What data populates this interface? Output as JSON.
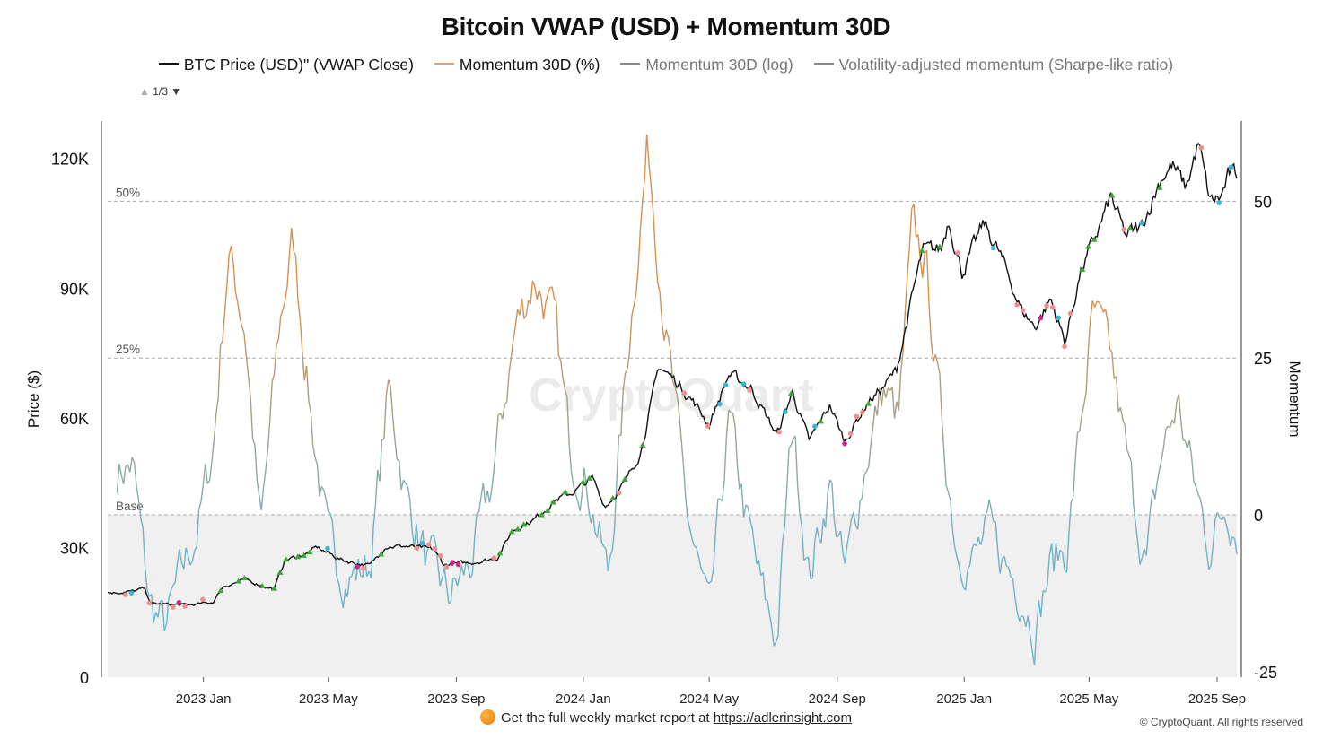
{
  "footer": {
    "text": "Get the full weekly market report at",
    "link": "https://adlerinsight.com",
    "icon": "orange-circle-icon"
  },
  "copyright": "© CryptoQuant. All rights reserved",
  "pager": {
    "label": "1/3"
  },
  "colors": {
    "price": "#111111",
    "momentum_high": "#d4904f",
    "momentum_low": "#6fb3c6",
    "baseline_fill": "#f0f0f0",
    "marker_green": "#3aa832",
    "marker_cyan": "#3db4d6",
    "marker_pink": "#ee8f8f",
    "marker_magenta": "#d0288a",
    "marker_purple": "#7a3fc8",
    "marker_red": "#c0392b"
  },
  "chart_data": {
    "type": "line",
    "title": "Bitcoin VWAP (USD) + Momentum 30D",
    "watermark": "CryptoQuant",
    "legend": [
      {
        "label": "BTC Price (USD)\" (VWAP Close)",
        "color": "#111111",
        "enabled": true
      },
      {
        "label": "Momentum 30D (%)",
        "color": "#e0a070",
        "enabled": true
      },
      {
        "label": "Momentum 30D (log)",
        "color": "#888888",
        "enabled": false
      },
      {
        "label": "Volatility-adjusted momentum (Sharpe-like ratio)",
        "color": "#888888",
        "enabled": false
      }
    ],
    "legend_position": "top-center",
    "y_left": {
      "label": "Price ($)",
      "range": [
        0,
        125000
      ],
      "ticks": [
        0,
        30000,
        60000,
        90000,
        120000
      ],
      "tick_labels": [
        "0",
        "30K",
        "60K",
        "90K",
        "120K"
      ]
    },
    "y_right": {
      "label": "Momentum",
      "range": [
        -25,
        64
      ],
      "ticks": [
        -25,
        0,
        25,
        50
      ],
      "tick_labels": [
        "-25",
        "0",
        "25",
        "50"
      ]
    },
    "x": {
      "range": [
        "2022-10-01",
        "2025-09-20"
      ],
      "ticks": [
        "2023-01-01",
        "2023-05-01",
        "2023-09-01",
        "2024-01-01",
        "2024-05-01",
        "2024-09-01",
        "2025-01-01",
        "2025-05-01",
        "2025-09-01"
      ],
      "tick_labels": [
        "2023 Jan",
        "2023 May",
        "2023 Sep",
        "2024 Jan",
        "2024 May",
        "2024 Sep",
        "2025 Jan",
        "2025 May",
        "2025 Sep"
      ]
    },
    "reference_lines": [
      {
        "label": "50%",
        "value": 50,
        "axis": "right"
      },
      {
        "label": "25%",
        "value": 25,
        "axis": "right"
      },
      {
        "label": "Base",
        "value": 0,
        "axis": "right"
      }
    ],
    "grid": false,
    "series": [
      {
        "name": "BTC Price (USD)\" (VWAP Close)",
        "axis": "left",
        "points": [
          [
            "2022-10-01",
            19500
          ],
          [
            "2022-10-25",
            19800
          ],
          [
            "2022-11-05",
            20500
          ],
          [
            "2022-11-12",
            17000
          ],
          [
            "2022-12-01",
            16800
          ],
          [
            "2022-12-20",
            16700
          ],
          [
            "2023-01-10",
            17300
          ],
          [
            "2023-01-20",
            21000
          ],
          [
            "2023-02-10",
            22500
          ],
          [
            "2023-03-10",
            20300
          ],
          [
            "2023-03-20",
            27000
          ],
          [
            "2023-04-10",
            28500
          ],
          [
            "2023-04-20",
            30000
          ],
          [
            "2023-05-15",
            27000
          ],
          [
            "2023-06-10",
            25800
          ],
          [
            "2023-06-25",
            30300
          ],
          [
            "2023-07-15",
            30300
          ],
          [
            "2023-08-10",
            29500
          ],
          [
            "2023-08-20",
            26000
          ],
          [
            "2023-09-15",
            26500
          ],
          [
            "2023-10-10",
            27500
          ],
          [
            "2023-10-25",
            34000
          ],
          [
            "2023-11-15",
            36500
          ],
          [
            "2023-12-05",
            41000
          ],
          [
            "2023-12-20",
            42500
          ],
          [
            "2024-01-10",
            46000
          ],
          [
            "2024-01-22",
            39500
          ],
          [
            "2024-02-10",
            45000
          ],
          [
            "2024-02-25",
            52000
          ],
          [
            "2024-03-05",
            62000
          ],
          [
            "2024-03-14",
            72000
          ],
          [
            "2024-04-01",
            68000
          ],
          [
            "2024-04-15",
            64000
          ],
          [
            "2024-05-01",
            58500
          ],
          [
            "2024-05-20",
            70000
          ],
          [
            "2024-06-10",
            67000
          ],
          [
            "2024-07-05",
            56000
          ],
          [
            "2024-07-20",
            66000
          ],
          [
            "2024-08-05",
            54500
          ],
          [
            "2024-08-25",
            63000
          ],
          [
            "2024-09-08",
            54500
          ],
          [
            "2024-09-30",
            63500
          ],
          [
            "2024-10-15",
            67000
          ],
          [
            "2024-10-28",
            71000
          ],
          [
            "2024-11-12",
            88000
          ],
          [
            "2024-11-22",
            98500
          ],
          [
            "2024-12-10",
            99000
          ],
          [
            "2024-12-17",
            106000
          ],
          [
            "2024-12-30",
            93500
          ],
          [
            "2025-01-20",
            105000
          ],
          [
            "2025-02-05",
            97500
          ],
          [
            "2025-02-25",
            85000
          ],
          [
            "2025-03-10",
            81000
          ],
          [
            "2025-03-25",
            87500
          ],
          [
            "2025-04-08",
            77500
          ],
          [
            "2025-04-22",
            93000
          ],
          [
            "2025-05-10",
            103500
          ],
          [
            "2025-05-22",
            111000
          ],
          [
            "2025-06-05",
            102000
          ],
          [
            "2025-06-20",
            104000
          ],
          [
            "2025-07-10",
            116000
          ],
          [
            "2025-07-20",
            118500
          ],
          [
            "2025-08-02",
            113000
          ],
          [
            "2025-08-14",
            123500
          ],
          [
            "2025-08-25",
            110000
          ],
          [
            "2025-09-05",
            111000
          ],
          [
            "2025-09-12",
            116000
          ],
          [
            "2025-09-20",
            116000
          ]
        ]
      },
      {
        "name": "Momentum 30D (%)",
        "axis": "right",
        "points": [
          [
            "2022-10-10",
            7
          ],
          [
            "2022-10-25",
            8
          ],
          [
            "2022-11-10",
            -14
          ],
          [
            "2022-11-25",
            -18
          ],
          [
            "2022-12-10",
            -10
          ],
          [
            "2022-12-25",
            -3
          ],
          [
            "2023-01-10",
            10
          ],
          [
            "2023-01-25",
            42
          ],
          [
            "2023-02-10",
            30
          ],
          [
            "2023-02-25",
            -3
          ],
          [
            "2023-03-15",
            30
          ],
          [
            "2023-03-28",
            44
          ],
          [
            "2023-04-15",
            15
          ],
          [
            "2023-05-01",
            -5
          ],
          [
            "2023-05-20",
            -10
          ],
          [
            "2023-06-10",
            -8
          ],
          [
            "2023-06-28",
            20
          ],
          [
            "2023-07-15",
            3
          ],
          [
            "2023-08-05",
            -8
          ],
          [
            "2023-08-25",
            -13
          ],
          [
            "2023-09-15",
            -8
          ],
          [
            "2023-10-05",
            5
          ],
          [
            "2023-10-28",
            30
          ],
          [
            "2023-11-15",
            38
          ],
          [
            "2023-12-05",
            30
          ],
          [
            "2023-12-20",
            10
          ],
          [
            "2024-01-05",
            5
          ],
          [
            "2024-01-25",
            -10
          ],
          [
            "2024-02-15",
            30
          ],
          [
            "2024-03-03",
            59
          ],
          [
            "2024-03-20",
            30
          ],
          [
            "2024-04-10",
            0
          ],
          [
            "2024-05-01",
            -17
          ],
          [
            "2024-05-20",
            15
          ],
          [
            "2024-06-05",
            0
          ],
          [
            "2024-06-20",
            -12
          ],
          [
            "2024-07-05",
            -20
          ],
          [
            "2024-07-20",
            15
          ],
          [
            "2024-08-05",
            -10
          ],
          [
            "2024-08-25",
            5
          ],
          [
            "2024-09-08",
            -10
          ],
          [
            "2024-09-30",
            10
          ],
          [
            "2024-10-15",
            20
          ],
          [
            "2024-10-30",
            15
          ],
          [
            "2024-11-12",
            45
          ],
          [
            "2024-11-25",
            40
          ],
          [
            "2024-12-10",
            15
          ],
          [
            "2024-12-25",
            -5
          ],
          [
            "2025-01-10",
            -7
          ],
          [
            "2025-01-25",
            -3
          ],
          [
            "2025-02-10",
            -8
          ],
          [
            "2025-02-25",
            -12
          ],
          [
            "2025-03-10",
            -18
          ],
          [
            "2025-03-25",
            -8
          ],
          [
            "2025-04-10",
            -5
          ],
          [
            "2025-04-20",
            10
          ],
          [
            "2025-05-05",
            32
          ],
          [
            "2025-05-22",
            25
          ],
          [
            "2025-06-10",
            5
          ],
          [
            "2025-06-25",
            -8
          ],
          [
            "2025-07-10",
            10
          ],
          [
            "2025-07-25",
            18
          ],
          [
            "2025-08-10",
            5
          ],
          [
            "2025-08-25",
            -5
          ],
          [
            "2025-09-10",
            2
          ],
          [
            "2025-09-20",
            -2
          ]
        ]
      }
    ]
  }
}
